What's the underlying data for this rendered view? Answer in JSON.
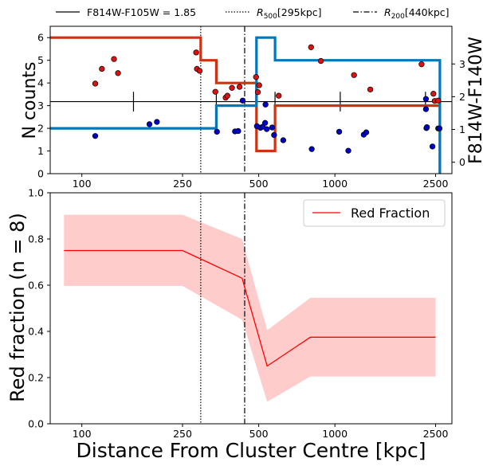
{
  "chart_data": [
    {
      "type": "line",
      "xscale": "log",
      "xlim": [
        75,
        2900
      ],
      "ylabel": "N counts",
      "ylim": [
        0,
        6.5
      ],
      "y2label": "F814W-F140W",
      "y2lim": [
        -0.35,
        4.15
      ],
      "xticks": [
        100,
        250,
        500,
        1000,
        2500
      ],
      "yticks": [
        0,
        1,
        2,
        3,
        4,
        5,
        6
      ],
      "y2ticks": [
        0,
        1,
        2,
        3
      ],
      "legend": {
        "placement": "above-top",
        "entries": [
          {
            "label": "F814W-F105W = 1.85",
            "style": "solid"
          },
          {
            "label_main": "R",
            "label_sub": "500",
            "label_rest": "[295kpc]",
            "style": "dotted"
          },
          {
            "label_main": "R",
            "label_sub": "200",
            "label_rest": "[440kpc]",
            "style": "dashdot"
          }
        ]
      },
      "reference_lines": {
        "r500": 295,
        "r200": 440,
        "color_cut": 1.85
      },
      "series": [
        {
          "name": "red-hist",
          "color": "#cc3311",
          "steps": [
            [
              75,
              6
            ],
            [
              295,
              6
            ],
            [
              295,
              5
            ],
            [
              340,
              5
            ],
            [
              340,
              4
            ],
            [
              490,
              4
            ],
            [
              490,
              1
            ],
            [
              580,
              1
            ],
            [
              580,
              3
            ],
            [
              2600,
              3
            ],
            [
              2600,
              0
            ]
          ]
        },
        {
          "name": "blue-hist",
          "color": "#0077bb",
          "steps": [
            [
              75,
              2
            ],
            [
              340,
              2
            ],
            [
              340,
              3
            ],
            [
              490,
              3
            ],
            [
              490,
              6
            ],
            [
              580,
              6
            ],
            [
              580,
              5
            ],
            [
              2600,
              5
            ],
            [
              2600,
              0
            ]
          ]
        }
      ],
      "red_points": [
        [
          113,
          2.4
        ],
        [
          120,
          2.85
        ],
        [
          134,
          3.15
        ],
        [
          139,
          2.72
        ],
        [
          283,
          3.35
        ],
        [
          285,
          2.85
        ],
        [
          292,
          2.79
        ],
        [
          337,
          2.15
        ],
        [
          370,
          1.97
        ],
        [
          376,
          2.03
        ],
        [
          392,
          2.27
        ],
        [
          420,
          2.3
        ],
        [
          488,
          2.6
        ],
        [
          496,
          2.14
        ],
        [
          502,
          2.35
        ],
        [
          600,
          2.03
        ],
        [
          805,
          3.51
        ],
        [
          880,
          3.09
        ],
        [
          1190,
          2.66
        ],
        [
          1380,
          2.22
        ],
        [
          2200,
          2.99
        ],
        [
          2450,
          2.09
        ],
        [
          2480,
          1.87
        ],
        [
          2560,
          1.88
        ]
      ],
      "blue_points": [
        [
          113,
          0.8
        ],
        [
          185,
          1.16
        ],
        [
          198,
          1.23
        ],
        [
          342,
          0.93
        ],
        [
          403,
          0.94
        ],
        [
          415,
          0.95
        ],
        [
          432,
          1.88
        ],
        [
          492,
          1.1
        ],
        [
          508,
          1.05
        ],
        [
          518,
          1.08
        ],
        [
          530,
          1.2
        ],
        [
          532,
          1.76
        ],
        [
          538,
          1.01
        ],
        [
          565,
          1.06
        ],
        [
          575,
          0.83
        ],
        [
          625,
          0.67
        ],
        [
          810,
          0.4
        ],
        [
          1040,
          0.93
        ],
        [
          1130,
          0.35
        ],
        [
          1300,
          0.84
        ],
        [
          1330,
          0.91
        ],
        [
          2290,
          1.93
        ],
        [
          2290,
          1.62
        ],
        [
          2300,
          1.04
        ],
        [
          2310,
          1.07
        ],
        [
          2430,
          0.48
        ],
        [
          2560,
          1.03
        ],
        [
          2590,
          1.03
        ]
      ],
      "error_bars": [
        [
          160,
          1.55,
          2.15
        ],
        [
          340,
          1.55,
          2.15
        ],
        [
          580,
          1.55,
          2.15
        ],
        [
          1050,
          1.55,
          2.15
        ],
        [
          2280,
          1.55,
          2.15
        ]
      ]
    },
    {
      "type": "line",
      "xscale": "log",
      "xlim": [
        75,
        2900
      ],
      "ylim": [
        0,
        1.0
      ],
      "xlabel": "Distance From Cluster Centre [kpc]",
      "ylabel": "Red fraction (n = 8)",
      "xticks": [
        100,
        250,
        500,
        1000,
        2500
      ],
      "yticks": [
        0.0,
        0.2,
        0.4,
        0.6,
        0.8,
        1.0
      ],
      "legend": {
        "placement": "top-right",
        "entries": [
          {
            "label": "Red Fraction",
            "color": "#ff0000"
          }
        ]
      },
      "series": [
        {
          "name": "Red Fraction",
          "color": "#ff0000",
          "x": [
            85,
            250,
            430,
            540,
            800,
            2500
          ],
          "y": [
            0.75,
            0.75,
            0.63,
            0.25,
            0.375,
            0.375
          ],
          "lower": [
            0.597,
            0.597,
            0.45,
            0.095,
            0.205,
            0.205
          ],
          "upper": [
            0.905,
            0.905,
            0.8,
            0.405,
            0.545,
            0.545
          ]
        }
      ]
    }
  ]
}
